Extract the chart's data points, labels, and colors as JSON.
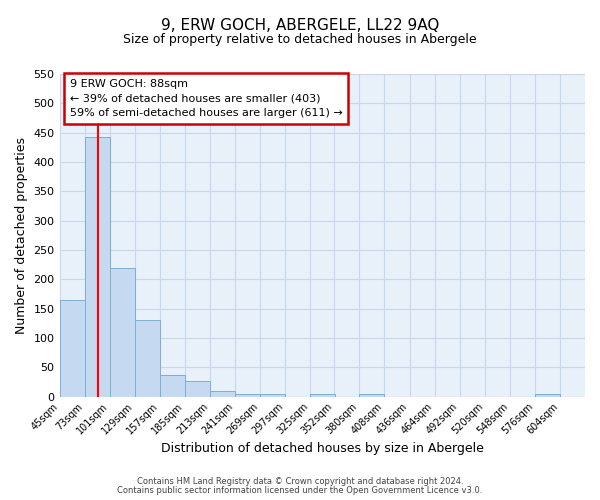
{
  "title": "9, ERW GOCH, ABERGELE, LL22 9AQ",
  "subtitle": "Size of property relative to detached houses in Abergele",
  "xlabel": "Distribution of detached houses by size in Abergele",
  "ylabel": "Number of detached properties",
  "bin_edges": [
    45,
    73,
    101,
    129,
    157,
    185,
    213,
    241,
    269,
    297,
    325,
    352,
    380,
    408,
    436,
    464,
    492,
    520,
    548,
    576,
    604
  ],
  "bin_counts": [
    165,
    443,
    220,
    130,
    37,
    26,
    10,
    5,
    5,
    0,
    5,
    0,
    5,
    0,
    0,
    0,
    0,
    0,
    0,
    5
  ],
  "bar_color": "#c5d9f0",
  "bar_edgecolor": "#7bafd4",
  "bar_linewidth": 0.7,
  "grid_color": "#c8d8ec",
  "bg_color": "#e8f0fa",
  "red_line_x": 88,
  "ylim": [
    0,
    550
  ],
  "yticks": [
    0,
    50,
    100,
    150,
    200,
    250,
    300,
    350,
    400,
    450,
    500,
    550
  ],
  "annotation_title": "9 ERW GOCH: 88sqm",
  "annotation_line1": "← 39% of detached houses are smaller (403)",
  "annotation_line2": "59% of semi-detached houses are larger (611) →",
  "annotation_box_color": "#ffffff",
  "annotation_box_edgecolor": "#cc0000",
  "footer_line1": "Contains HM Land Registry data © Crown copyright and database right 2024.",
  "footer_line2": "Contains public sector information licensed under the Open Government Licence v3.0."
}
